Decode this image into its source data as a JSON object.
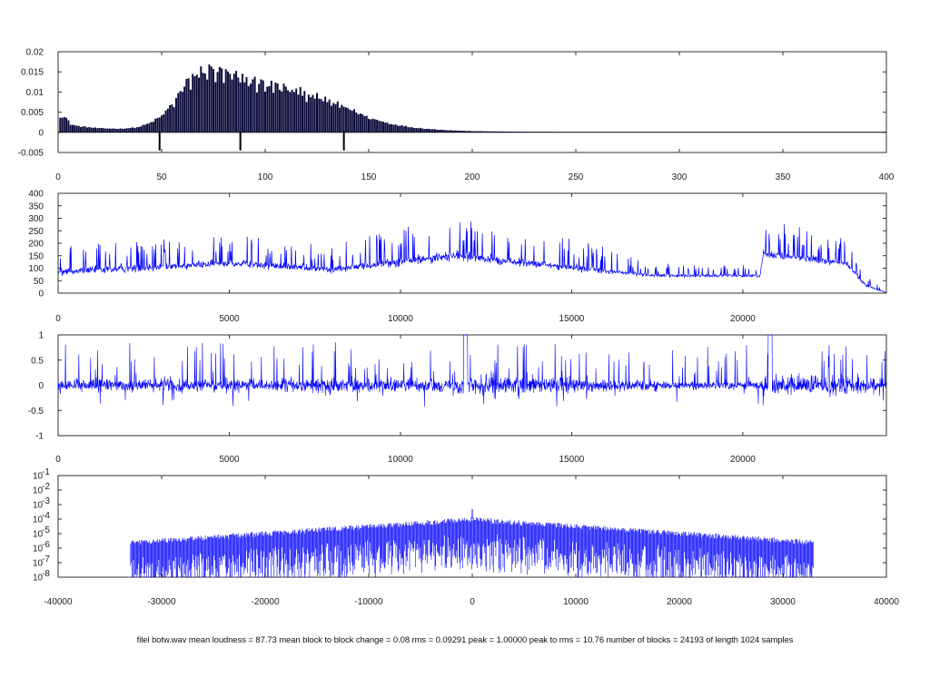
{
  "caption": "filel botw.wav mean loudness =  87.73 mean block to block change =    0.08 rms =  0.09291 peak =  1.00000 peak to rms =  10.76 number of blocks = 24193 of length 1024 samples",
  "colors": {
    "bars": "#0b0b3a",
    "trace": "#0000ff",
    "frame": "#333333"
  },
  "chart_data": [
    {
      "id": "hist",
      "type": "bar",
      "title": "",
      "xlabel": "",
      "ylabel": "",
      "xlim": [
        0,
        400
      ],
      "ylim": [
        -0.005,
        0.02
      ],
      "xticks": [
        0,
        50,
        100,
        150,
        200,
        250,
        300,
        350,
        400
      ],
      "yticks": [
        -0.005,
        0,
        0.005,
        0.01,
        0.015,
        0.02
      ],
      "ytick_labels": [
        "-0.005",
        "0",
        "0.005",
        "0.01",
        "0.015",
        "0.02"
      ],
      "envelope": [
        [
          2,
          0.004
        ],
        [
          4,
          0.0035
        ],
        [
          6,
          0.002
        ],
        [
          10,
          0.0015
        ],
        [
          20,
          0.001
        ],
        [
          30,
          0.0009
        ],
        [
          38,
          0.0012
        ],
        [
          44,
          0.0022
        ],
        [
          50,
          0.004
        ],
        [
          55,
          0.007
        ],
        [
          60,
          0.011
        ],
        [
          65,
          0.014
        ],
        [
          70,
          0.0158
        ],
        [
          75,
          0.0156
        ],
        [
          80,
          0.0148
        ],
        [
          88,
          0.0138
        ],
        [
          95,
          0.0128
        ],
        [
          100,
          0.0122
        ],
        [
          110,
          0.0112
        ],
        [
          120,
          0.0098
        ],
        [
          130,
          0.008
        ],
        [
          140,
          0.006
        ],
        [
          150,
          0.0036
        ],
        [
          160,
          0.0022
        ],
        [
          170,
          0.0013
        ],
        [
          180,
          0.0008
        ],
        [
          190,
          0.0005
        ],
        [
          200,
          0.0003
        ],
        [
          215,
          0.0002
        ],
        [
          230,
          0.0001
        ],
        [
          240,
          0.0001
        ]
      ],
      "negative_spikes": [
        [
          49,
          -0.0045
        ],
        [
          88,
          -0.0045
        ],
        [
          138,
          -0.0045
        ]
      ]
    },
    {
      "id": "loudness",
      "type": "line",
      "title": "",
      "xlim": [
        0,
        24193
      ],
      "ylim": [
        0,
        400
      ],
      "xticks": [
        0,
        5000,
        10000,
        15000,
        20000
      ],
      "yticks": [
        0,
        50,
        100,
        150,
        200,
        250,
        300,
        350,
        400
      ],
      "segments": [
        [
          0,
          85,
          45
        ],
        [
          5000,
          120,
          45
        ],
        [
          8000,
          95,
          40
        ],
        [
          11500,
          150,
          60
        ],
        [
          15500,
          95,
          40
        ],
        [
          17500,
          70,
          18
        ],
        [
          20500,
          70,
          18
        ],
        [
          20600,
          160,
          50
        ],
        [
          23000,
          120,
          40
        ],
        [
          23600,
          30,
          15
        ],
        [
          24193,
          2,
          2
        ]
      ]
    },
    {
      "id": "waveform",
      "type": "line",
      "title": "",
      "xlim": [
        0,
        24193
      ],
      "ylim": [
        -1,
        1
      ],
      "xticks": [
        0,
        5000,
        10000,
        15000,
        20000
      ],
      "yticks": [
        -1,
        -0.5,
        0,
        0.5,
        1
      ],
      "peak": 1.0
    },
    {
      "id": "spectrum",
      "type": "line",
      "title": "",
      "yscale": "log",
      "xlim": [
        -40000,
        40000
      ],
      "ylim": [
        1e-08,
        0.1
      ],
      "xticks": [
        -40000,
        -30000,
        -20000,
        -10000,
        0,
        10000,
        20000,
        30000,
        40000
      ],
      "yticks_exp": [
        -1,
        -2,
        -3,
        -4,
        -5,
        -6,
        -7,
        -8
      ],
      "peak_at_zero": 0.0005,
      "center_level": 0.0001,
      "width": 9000
    }
  ]
}
